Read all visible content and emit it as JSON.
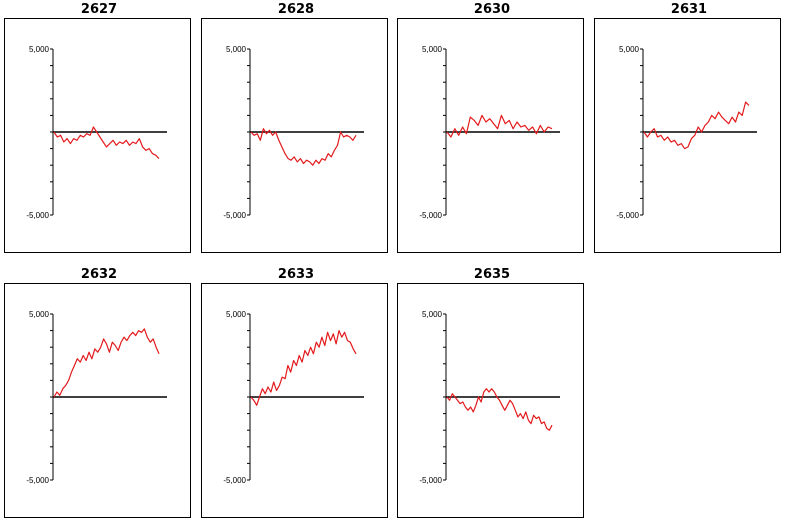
{
  "colors": {
    "series": "#e31a1c",
    "axis": "#000000",
    "frame": "#000000"
  },
  "chart_data": [
    {
      "type": "line",
      "title": "2627",
      "ylim": [
        -5000,
        5000
      ],
      "yticks": [
        "5,000",
        "-5,000"
      ],
      "series": [
        {
          "values": [
            0,
            -300,
            -200,
            -600,
            -400,
            -700,
            -400,
            -500,
            -200,
            -300,
            -100,
            -200,
            300,
            0,
            -300,
            -600,
            -900,
            -700,
            -500,
            -800,
            -600,
            -700,
            -500,
            -800,
            -600,
            -700,
            -400,
            -900,
            -1100,
            -1000,
            -1300,
            -1400,
            -1600
          ]
        }
      ]
    },
    {
      "type": "line",
      "title": "2628",
      "ylim": [
        -5000,
        5000
      ],
      "yticks": [
        "5,000",
        "-5,000"
      ],
      "series": [
        {
          "values": [
            0,
            -200,
            -100,
            -500,
            200,
            -100,
            100,
            -200,
            0,
            -500,
            -900,
            -1300,
            -1600,
            -1700,
            -1500,
            -1800,
            -1600,
            -1900,
            -1700,
            -1800,
            -2000,
            -1700,
            -1900,
            -1600,
            -1700,
            -1300,
            -1500,
            -1100,
            -800,
            0,
            -300,
            -200,
            -300,
            -500,
            -200
          ]
        }
      ]
    },
    {
      "type": "line",
      "title": "2630",
      "ylim": [
        -5000,
        5000
      ],
      "yticks": [
        "5,000",
        "-5,000"
      ],
      "series": [
        {
          "values": [
            0,
            -300,
            200,
            -200,
            300,
            -100,
            900,
            700,
            400,
            1000,
            600,
            800,
            500,
            200,
            1000,
            500,
            700,
            200,
            600,
            300,
            400,
            100,
            300,
            -100,
            400,
            0,
            300,
            200
          ]
        }
      ]
    }
  ]
}
